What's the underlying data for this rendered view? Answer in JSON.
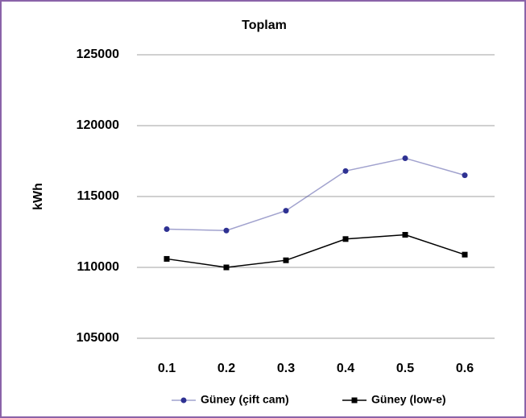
{
  "chart_data": {
    "type": "line",
    "title": "Toplam",
    "ylabel": "kWh",
    "categories": [
      "0.1",
      "0.2",
      "0.3",
      "0.4",
      "0.5",
      "0.6"
    ],
    "series": [
      {
        "name": "Güney (çift cam)",
        "color": "#2e3192",
        "values": [
          112700,
          112600,
          114000,
          116800,
          117700,
          116500
        ]
      },
      {
        "name": "Güney (low-e)",
        "color": "#000000",
        "values": [
          110600,
          110000,
          110500,
          112000,
          112300,
          110900
        ]
      }
    ],
    "ylim": [
      105000,
      125000
    ],
    "yticks": [
      105000,
      110000,
      115000,
      120000,
      125000
    ],
    "grid": true
  }
}
